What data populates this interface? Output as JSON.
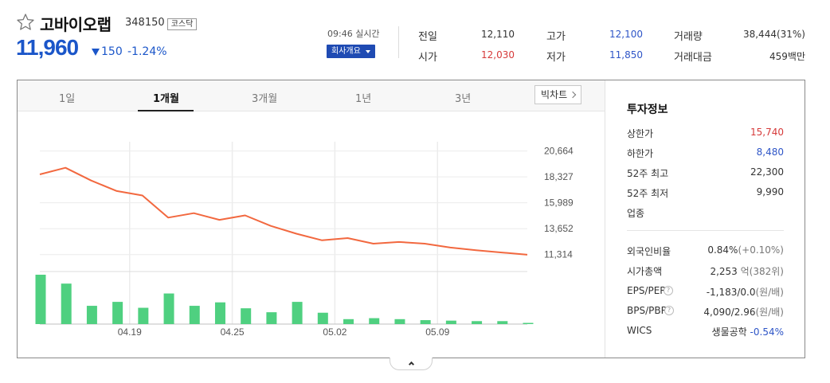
{
  "stock": {
    "name": "고바이오랩",
    "code": "348150",
    "market": "코스닥",
    "price": "11,960",
    "change": "150",
    "change_pct": "-1.24%",
    "realtime": "09:46 실시간",
    "company_button": "회사개요",
    "colors": {
      "down": "#1b56c9",
      "up": "#d63a3a"
    }
  },
  "quote": {
    "prev_label": "전일",
    "prev": "12,110",
    "open_label": "시가",
    "open": "12,030",
    "high_label": "고가",
    "high": "12,100",
    "low_label": "저가",
    "low": "11,850",
    "volume_label": "거래량",
    "volume": "38,444(31%)",
    "amount_label": "거래대금",
    "amount": "459백만"
  },
  "tabs": [
    "1일",
    "1개월",
    "3개월",
    "1년",
    "3년"
  ],
  "active_tab": "1개월",
  "big_chart_label": "빅차트",
  "chart_data": {
    "type": "line",
    "price_ticks": [
      "20,664",
      "18,327",
      "15,989",
      "13,652",
      "11,314"
    ],
    "price_tick_values": [
      20664,
      18327,
      15989,
      13652,
      11314
    ],
    "ylim": [
      10000,
      21500
    ],
    "x_labels": [
      "04.19",
      "04.25",
      "05.02",
      "05.09"
    ],
    "x_label_index": [
      4,
      8,
      12,
      16
    ],
    "close": [
      18550,
      19150,
      18000,
      17050,
      16650,
      14650,
      15050,
      14450,
      14850,
      13900,
      13200,
      12600,
      12800,
      12300,
      12450,
      12300,
      11950,
      11700,
      11500,
      11300
    ],
    "volume_series_label": "거래량",
    "volume_rel": [
      1.0,
      0.82,
      0.37,
      0.45,
      0.33,
      0.62,
      0.37,
      0.44,
      0.32,
      0.24,
      0.45,
      0.23,
      0.1,
      0.12,
      0.1,
      0.08,
      0.07,
      0.06,
      0.06,
      0.02
    ],
    "colors": {
      "line": "#f2683f",
      "volume": "#4fd080",
      "grid": "#ececec"
    }
  },
  "invest": {
    "title": "투자정보",
    "upper_limit_label": "상한가",
    "upper_limit": "15,740",
    "lower_limit_label": "하한가",
    "lower_limit": "8,480",
    "high52_label": "52주 최고",
    "high52": "22,300",
    "low52_label": "52주 최저",
    "low52": "9,990",
    "sector_label": "업종",
    "foreign_label": "외국인비율",
    "foreign": "0.84%",
    "foreign_change": "(+0.10%)",
    "mcap_label": "시가총액",
    "mcap": "2,253",
    "mcap_unit": "억(382위)",
    "eps_label": "EPS/PER",
    "eps": "-1,183/0.0",
    "eps_unit": "(원/배)",
    "bps_label": "BPS/PBR",
    "bps": "4,090/2.96",
    "bps_unit": "(원/배)",
    "wics_label": "WICS",
    "wics": "생물공학",
    "wics_change": "-0.54%",
    "help_glyph": "?"
  }
}
